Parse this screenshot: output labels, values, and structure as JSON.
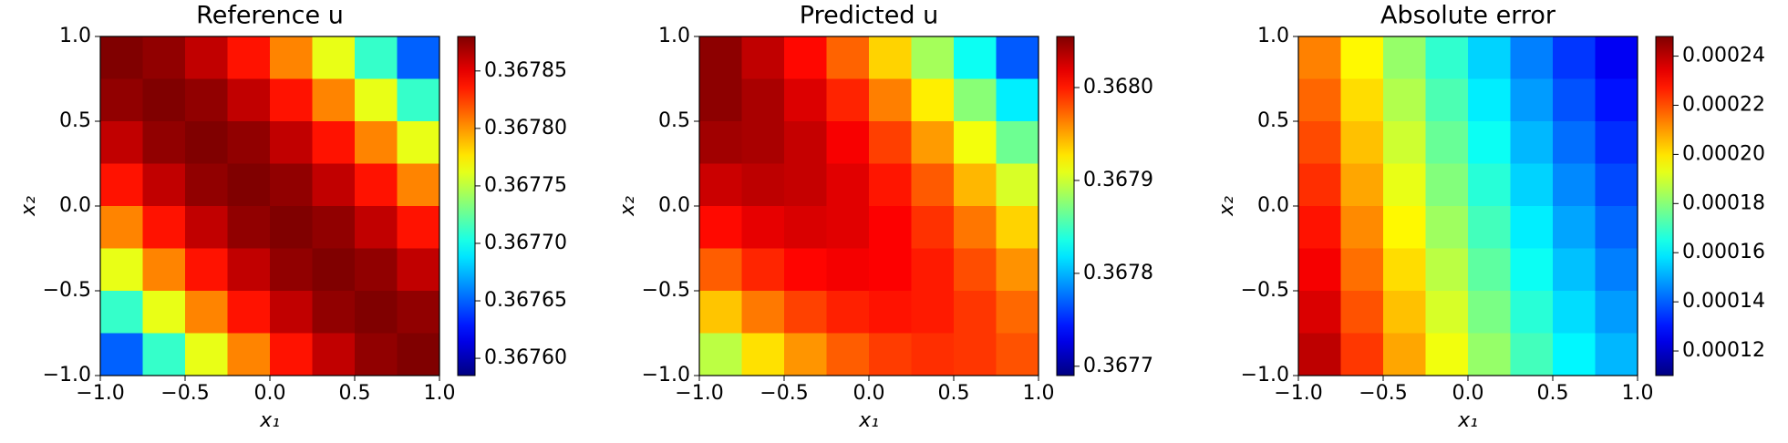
{
  "chart_data": [
    {
      "type": "heatmap",
      "title": "Reference u",
      "xlabel": "x₁",
      "ylabel": "x₂",
      "colormap": "jet",
      "xlim": [
        -1,
        1
      ],
      "ylim": [
        -1,
        1
      ],
      "xticks": [
        {
          "value": -1,
          "label": "−1.0"
        },
        {
          "value": -0.5,
          "label": "−0.5"
        },
        {
          "value": 0,
          "label": "0.0"
        },
        0.5,
        {
          "value": 1,
          "label": "1.0"
        }
      ],
      "yticks": [
        {
          "value": -1,
          "label": "−1.0"
        },
        {
          "value": -0.5,
          "label": "−0.5"
        },
        {
          "value": 0,
          "label": "0.0"
        },
        0.5,
        {
          "value": 1,
          "label": "1.0"
        }
      ],
      "clim": [
        0.367585,
        0.36788
      ],
      "cticks": [
        {
          "value": 0.3676,
          "label": "0.36760"
        },
        0.36765,
        {
          "value": 0.3677,
          "label": "0.36770"
        },
        0.36775,
        {
          "value": 0.3678,
          "label": "0.36780"
        },
        0.36785
      ],
      "z": [
        [
          0.36788,
          0.367875,
          0.367861,
          0.367838,
          0.367805,
          0.367763,
          0.367711,
          0.36765
        ],
        [
          0.367875,
          0.36788,
          0.367875,
          0.367861,
          0.367838,
          0.367805,
          0.367763,
          0.367711
        ],
        [
          0.367861,
          0.367875,
          0.36788,
          0.367875,
          0.367861,
          0.367838,
          0.367805,
          0.367763
        ],
        [
          0.367838,
          0.367861,
          0.367875,
          0.36788,
          0.367875,
          0.367861,
          0.367838,
          0.367805
        ],
        [
          0.367805,
          0.367838,
          0.367861,
          0.367875,
          0.36788,
          0.367875,
          0.367861,
          0.367838
        ],
        [
          0.367763,
          0.367805,
          0.367838,
          0.367861,
          0.367875,
          0.36788,
          0.367875,
          0.367861
        ],
        [
          0.367711,
          0.367763,
          0.367805,
          0.367838,
          0.367861,
          0.367875,
          0.36788,
          0.367875
        ],
        [
          0.36765,
          0.367711,
          0.367763,
          0.367805,
          0.367838,
          0.367861,
          0.367875,
          0.36788
        ]
      ]
    },
    {
      "type": "heatmap",
      "title": "Predicted u",
      "xlabel": "x₁",
      "ylabel": "x₂",
      "colormap": "jet",
      "xlim": [
        -1,
        1
      ],
      "ylim": [
        -1,
        1
      ],
      "xticks": [
        {
          "value": -1,
          "label": "−1.0"
        },
        {
          "value": -0.5,
          "label": "−0.5"
        },
        {
          "value": 0,
          "label": "0.0"
        },
        0.5,
        {
          "value": 1,
          "label": "1.0"
        }
      ],
      "yticks": [
        {
          "value": -1,
          "label": "−1.0"
        },
        {
          "value": -0.5,
          "label": "−0.5"
        },
        {
          "value": 0,
          "label": "0.0"
        },
        0.5,
        {
          "value": 1,
          "label": "1.0"
        }
      ],
      "clim": [
        0.36769,
        0.368055
      ],
      "cticks": [
        0.3677,
        0.3678,
        0.3679,
        {
          "value": 0.368,
          "label": "0.3680"
        }
      ],
      "z": [
        [
          0.36805,
          0.368032,
          0.368007,
          0.367974,
          0.367934,
          0.367886,
          0.367831,
          0.367768
        ],
        [
          0.36805,
          0.36804,
          0.368022,
          0.367997,
          0.367964,
          0.367924,
          0.367876,
          0.367821
        ],
        [
          0.368043,
          0.36804,
          0.36803,
          0.368012,
          0.367987,
          0.367954,
          0.367914,
          0.367866
        ],
        [
          0.368028,
          0.368033,
          0.36803,
          0.36802,
          0.368002,
          0.367977,
          0.367944,
          0.367904
        ],
        [
          0.368006,
          0.368018,
          0.368023,
          0.36802,
          0.36801,
          0.367992,
          0.367967,
          0.367934
        ],
        [
          0.367976,
          0.367996,
          0.368008,
          0.368013,
          0.36801,
          0.368,
          0.367982,
          0.367957
        ],
        [
          0.367939,
          0.367966,
          0.367986,
          0.367998,
          0.368003,
          0.368,
          0.36799,
          0.367972
        ],
        [
          0.367894,
          0.367929,
          0.367956,
          0.367976,
          0.367988,
          0.367993,
          0.36799,
          0.36798
        ]
      ]
    },
    {
      "type": "heatmap",
      "title": "Absolute error",
      "xlabel": "x₁",
      "ylabel": "x₂",
      "colormap": "jet",
      "xlim": [
        -1,
        1
      ],
      "ylim": [
        -1,
        1
      ],
      "xticks": [
        {
          "value": -1,
          "label": "−1.0"
        },
        {
          "value": -0.5,
          "label": "−0.5"
        },
        {
          "value": 0,
          "label": "0.0"
        },
        0.5,
        {
          "value": 1,
          "label": "1.0"
        }
      ],
      "yticks": [
        {
          "value": -1,
          "label": "−1.0"
        },
        {
          "value": -0.5,
          "label": "−0.5"
        },
        {
          "value": 0,
          "label": "0.0"
        },
        0.5,
        {
          "value": 1,
          "label": "1.0"
        }
      ],
      "clim": [
        0.00011,
        0.000248
      ],
      "cticks": [
        0.00012,
        0.00014,
        0.00016,
        0.00018,
        {
          "value": 0.0002,
          "label": "0.00020"
        },
        0.00022,
        0.00024
      ],
      "z": [
        [
          0.0002133,
          0.0001971,
          0.0001821,
          0.0001683,
          0.0001558,
          0.0001446,
          0.0001346,
          0.0001258
        ],
        [
          0.000217,
          0.0002008,
          0.0001858,
          0.000172,
          0.0001595,
          0.0001483,
          0.0001383,
          0.0001295
        ],
        [
          0.0002208,
          0.0002046,
          0.0001896,
          0.0001758,
          0.0001633,
          0.0001521,
          0.0001421,
          0.0001333
        ],
        [
          0.0002245,
          0.0002083,
          0.0001933,
          0.0001795,
          0.000167,
          0.0001558,
          0.0001458,
          0.000137
        ],
        [
          0.0002283,
          0.0002121,
          0.0001971,
          0.0001833,
          0.0001708,
          0.0001596,
          0.0001496,
          0.0001408
        ],
        [
          0.000232,
          0.0002158,
          0.0002008,
          0.000187,
          0.0001745,
          0.0001633,
          0.0001533,
          0.0001445
        ],
        [
          0.0002358,
          0.0002196,
          0.0002046,
          0.0001908,
          0.0001783,
          0.0001671,
          0.0001571,
          0.0001483
        ],
        [
          0.0002395,
          0.0002233,
          0.0002083,
          0.0001945,
          0.000182,
          0.0001708,
          0.0001608,
          0.000152
        ]
      ]
    }
  ]
}
